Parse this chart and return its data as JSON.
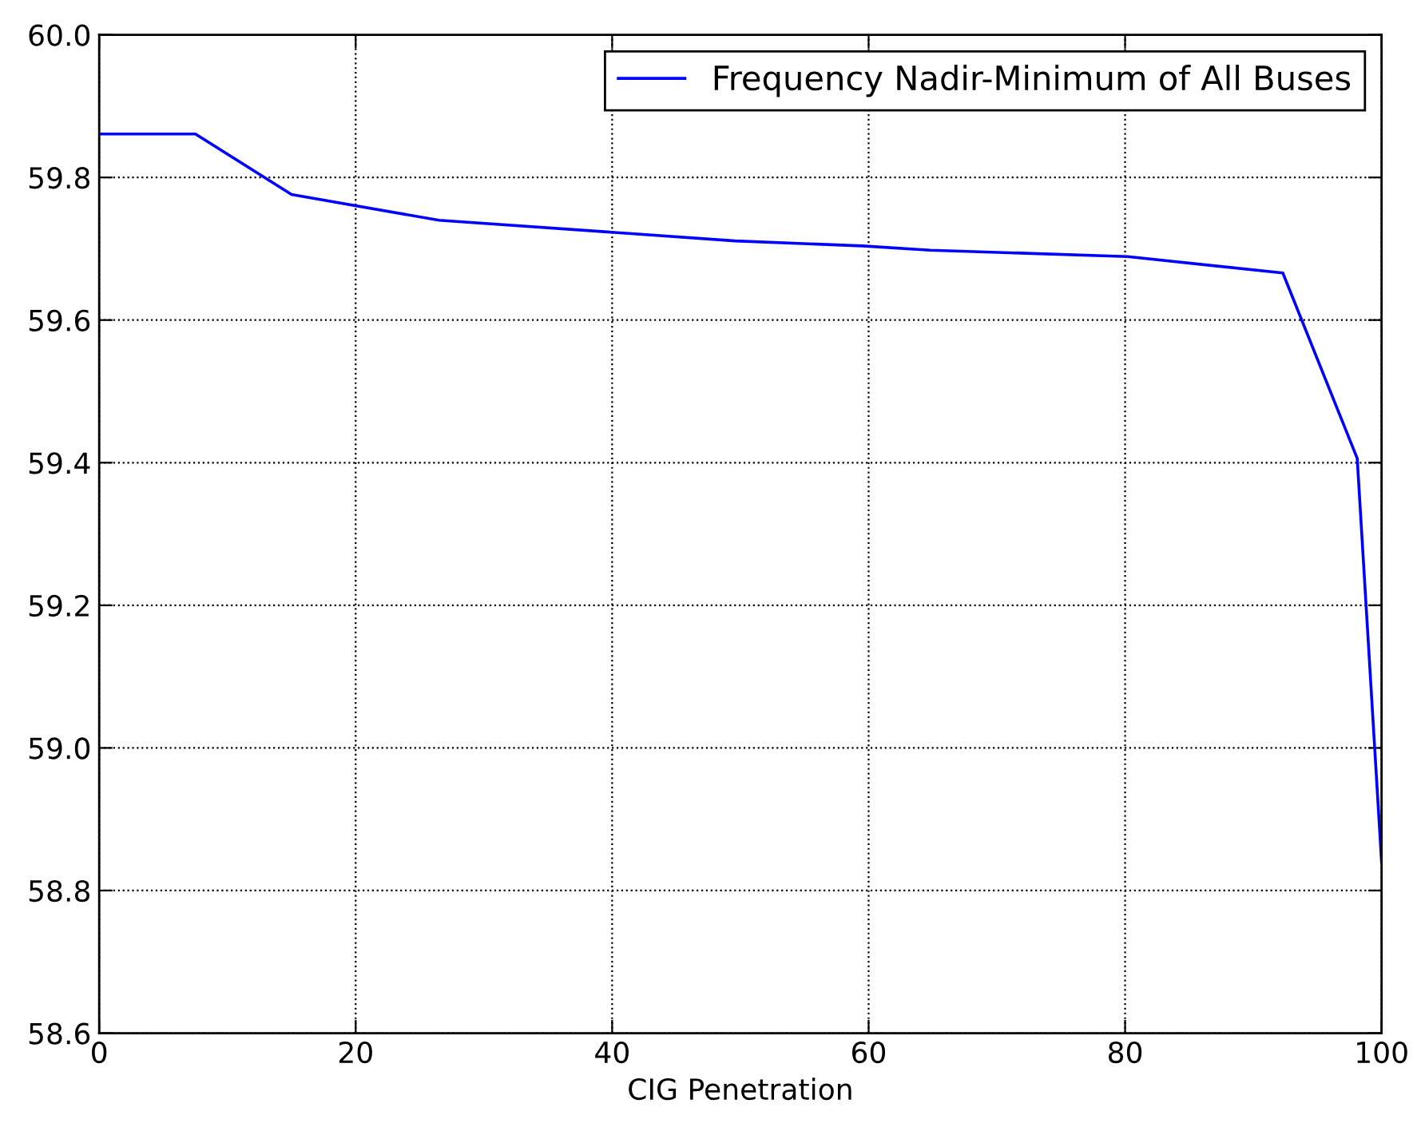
{
  "chart_data": {
    "type": "line",
    "xlabel": "CIG Penetration",
    "xlim": [
      0,
      100
    ],
    "xticks": [
      0,
      20,
      40,
      60,
      80,
      100
    ],
    "ylim": [
      58.6,
      60.0
    ],
    "yticks": [
      {
        "value": 58.6,
        "label": "58.6"
      },
      {
        "value": 58.8,
        "label": "58.8"
      },
      {
        "value": 59.0,
        "label": "59.0"
      },
      {
        "value": 59.2,
        "label": "59.2"
      },
      {
        "value": 59.4,
        "label": "59.4"
      },
      {
        "value": 59.6,
        "label": "59.6"
      },
      {
        "value": 59.8,
        "label": "59.8"
      },
      {
        "value": 60.0,
        "label": "60.0"
      }
    ],
    "grid": true,
    "legend": "top right",
    "line_style": "solid",
    "marker": "none",
    "series": [
      {
        "name": "Frequency Nadir-Minimum of All Buses",
        "color": "#0000ff",
        "x": [
          0,
          7.5,
          15,
          26.5,
          49.6,
          59.5,
          64.8,
          80.2,
          92.3,
          98.1,
          100
        ],
        "values": [
          59.861,
          59.861,
          59.776,
          59.74,
          59.711,
          59.704,
          59.698,
          59.689,
          59.666,
          59.406,
          58.84
        ]
      }
    ]
  }
}
